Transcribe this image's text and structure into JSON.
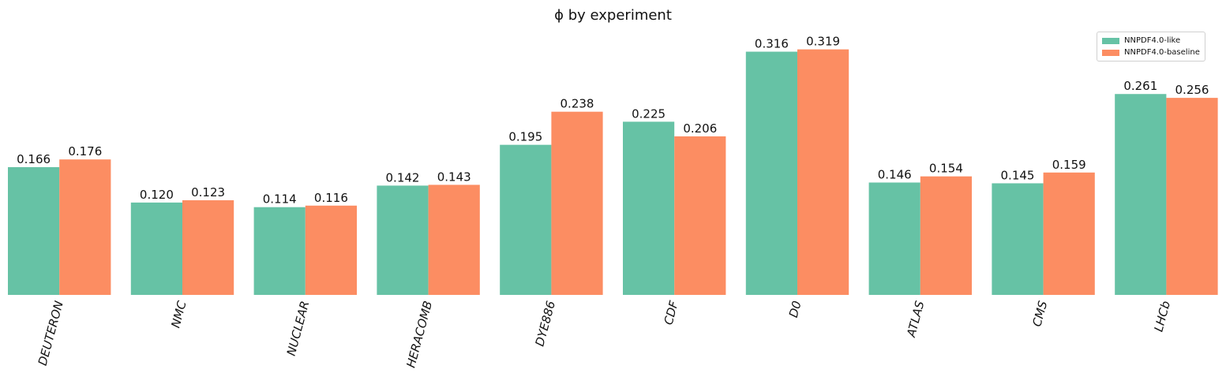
{
  "chart_data": {
    "type": "bar",
    "title": "ϕ by experiment",
    "xlabel": "",
    "ylabel": "",
    "ylim": [
      0,
      0.335
    ],
    "categories": [
      "DEUTERON",
      "NMC",
      "NUCLEAR",
      "HERACOMB",
      "DYE886",
      "CDF",
      "D0",
      "ATLAS",
      "CMS",
      "LHCb"
    ],
    "series": [
      {
        "name": "NNPDF4.0-like",
        "color": "#66c2a5",
        "values": [
          0.166,
          0.12,
          0.114,
          0.142,
          0.195,
          0.225,
          0.316,
          0.146,
          0.145,
          0.261
        ],
        "labels": [
          "0.166",
          "0.120",
          "0.114",
          "0.142",
          "0.195",
          "0.225",
          "0.316",
          "0.146",
          "0.145",
          "0.261"
        ]
      },
      {
        "name": "NNPDF4.0-baseline",
        "color": "#fc8d62",
        "values": [
          0.176,
          0.123,
          0.116,
          0.143,
          0.238,
          0.206,
          0.319,
          0.154,
          0.159,
          0.256
        ],
        "labels": [
          "0.176",
          "0.123",
          "0.116",
          "0.143",
          "0.238",
          "0.206",
          "0.319",
          "0.154",
          "0.159",
          "0.256"
        ]
      }
    ],
    "grid": false,
    "legend_position": "top-right",
    "tick_label_rotation": "-75"
  }
}
